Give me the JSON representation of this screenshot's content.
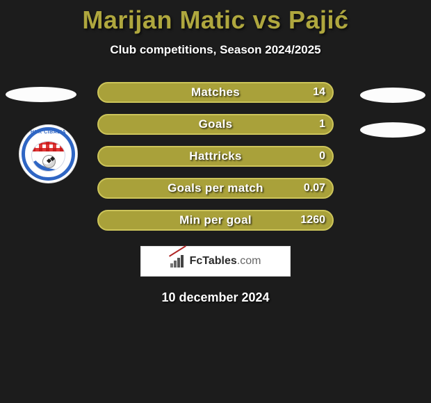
{
  "colors": {
    "background": "#1c1c1c",
    "title_color": "#afa73e",
    "row_fill": "#a9a13a",
    "row_border": "#cdc55a",
    "text": "#ffffff"
  },
  "header": {
    "title": "Marijan Matic vs Pajić",
    "subtitle": "Club competitions, Season 2024/2025"
  },
  "stats": [
    {
      "label": "Matches",
      "value": "14",
      "fill_pct": 100
    },
    {
      "label": "Goals",
      "value": "1",
      "fill_pct": 100
    },
    {
      "label": "Hattricks",
      "value": "0",
      "fill_pct": 100
    },
    {
      "label": "Goals per match",
      "value": "0.07",
      "fill_pct": 100
    },
    {
      "label": "Min per goal",
      "value": "1260",
      "fill_pct": 100
    }
  ],
  "club_badge": {
    "arc_text": "HNK CIBALIA"
  },
  "brand": {
    "name_main": "FcTables",
    "name_suffix": ".com"
  },
  "footer": {
    "date": "10 december 2024"
  }
}
